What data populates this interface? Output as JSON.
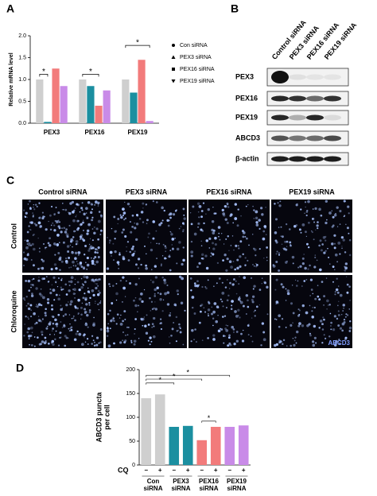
{
  "panel_labels": [
    "A",
    "B",
    "C",
    "D"
  ],
  "chart_data": [
    {
      "type": "bar",
      "ylabel": [
        "Relative mRNA level"
      ],
      "categories": [
        "PEX3",
        "PEX16",
        "PEX19"
      ],
      "series": [
        {
          "name": "Con siRNA",
          "color": "#cfcfcf",
          "values": [
            1.0,
            1.0,
            1.0
          ]
        },
        {
          "name": "PEX3 siRNA",
          "color": "#1b8fa0",
          "values": [
            0.03,
            0.85,
            0.7
          ]
        },
        {
          "name": "PEX16 siRNA",
          "color": "#f27b7b",
          "values": [
            1.25,
            0.4,
            1.45
          ]
        },
        {
          "name": "PEX19 siRNA",
          "color": "#c98be8",
          "values": [
            0.85,
            0.75,
            0.05
          ]
        }
      ],
      "ylim": [
        0,
        2
      ],
      "yticks": [
        {
          "value": 0,
          "label": "0.0"
        },
        {
          "value": 0.5,
          "label": "0.5"
        },
        {
          "value": 1,
          "label": "1.0"
        },
        {
          "value": 1.5,
          "label": "1.5"
        },
        {
          "value": 2,
          "label": "2.0"
        }
      ],
      "annotations": [
        "*",
        "*",
        "*"
      ]
    },
    {
      "type": "bar",
      "ylabel": [
        "ABCD3 puncta",
        "per cell"
      ],
      "categories": [
        "−",
        "+",
        "−",
        "+",
        "−",
        "+",
        "−",
        "+"
      ],
      "values": [
        140,
        148,
        80,
        82,
        52,
        80,
        80,
        83
      ],
      "colors": [
        "#cfcfcf",
        "#cfcfcf",
        "#1b8fa0",
        "#1b8fa0",
        "#f27b7b",
        "#f27b7b",
        "#c98be8",
        "#c98be8"
      ],
      "row_label": "CQ",
      "groups": [
        [
          "Con",
          "siRNA"
        ],
        [
          "PEX3",
          "siRNA"
        ],
        [
          "PEX16",
          "siRNA"
        ],
        [
          "PEX19",
          "siRNA"
        ]
      ],
      "ylim": [
        0,
        200
      ],
      "yticks": [
        0,
        50,
        100,
        150,
        200
      ],
      "annotations": [
        "*",
        "*",
        "*",
        "*"
      ]
    }
  ],
  "blot": {
    "columns": [
      "Control siRNA",
      "PEX3 siRNA",
      "PEX16 siRNA",
      "PEX19 siRNA"
    ],
    "rows": [
      "PEX3",
      "PEX16",
      "PEX19",
      "ABCD3",
      "β-actin"
    ]
  },
  "microscopy": {
    "columns": [
      "Control siRNA",
      "PEX3 siRNA",
      "PEX16 siRNA",
      "PEX19 siRNA"
    ],
    "rows": [
      "Control",
      "Chloroquine"
    ],
    "stain": "ABCD3"
  }
}
